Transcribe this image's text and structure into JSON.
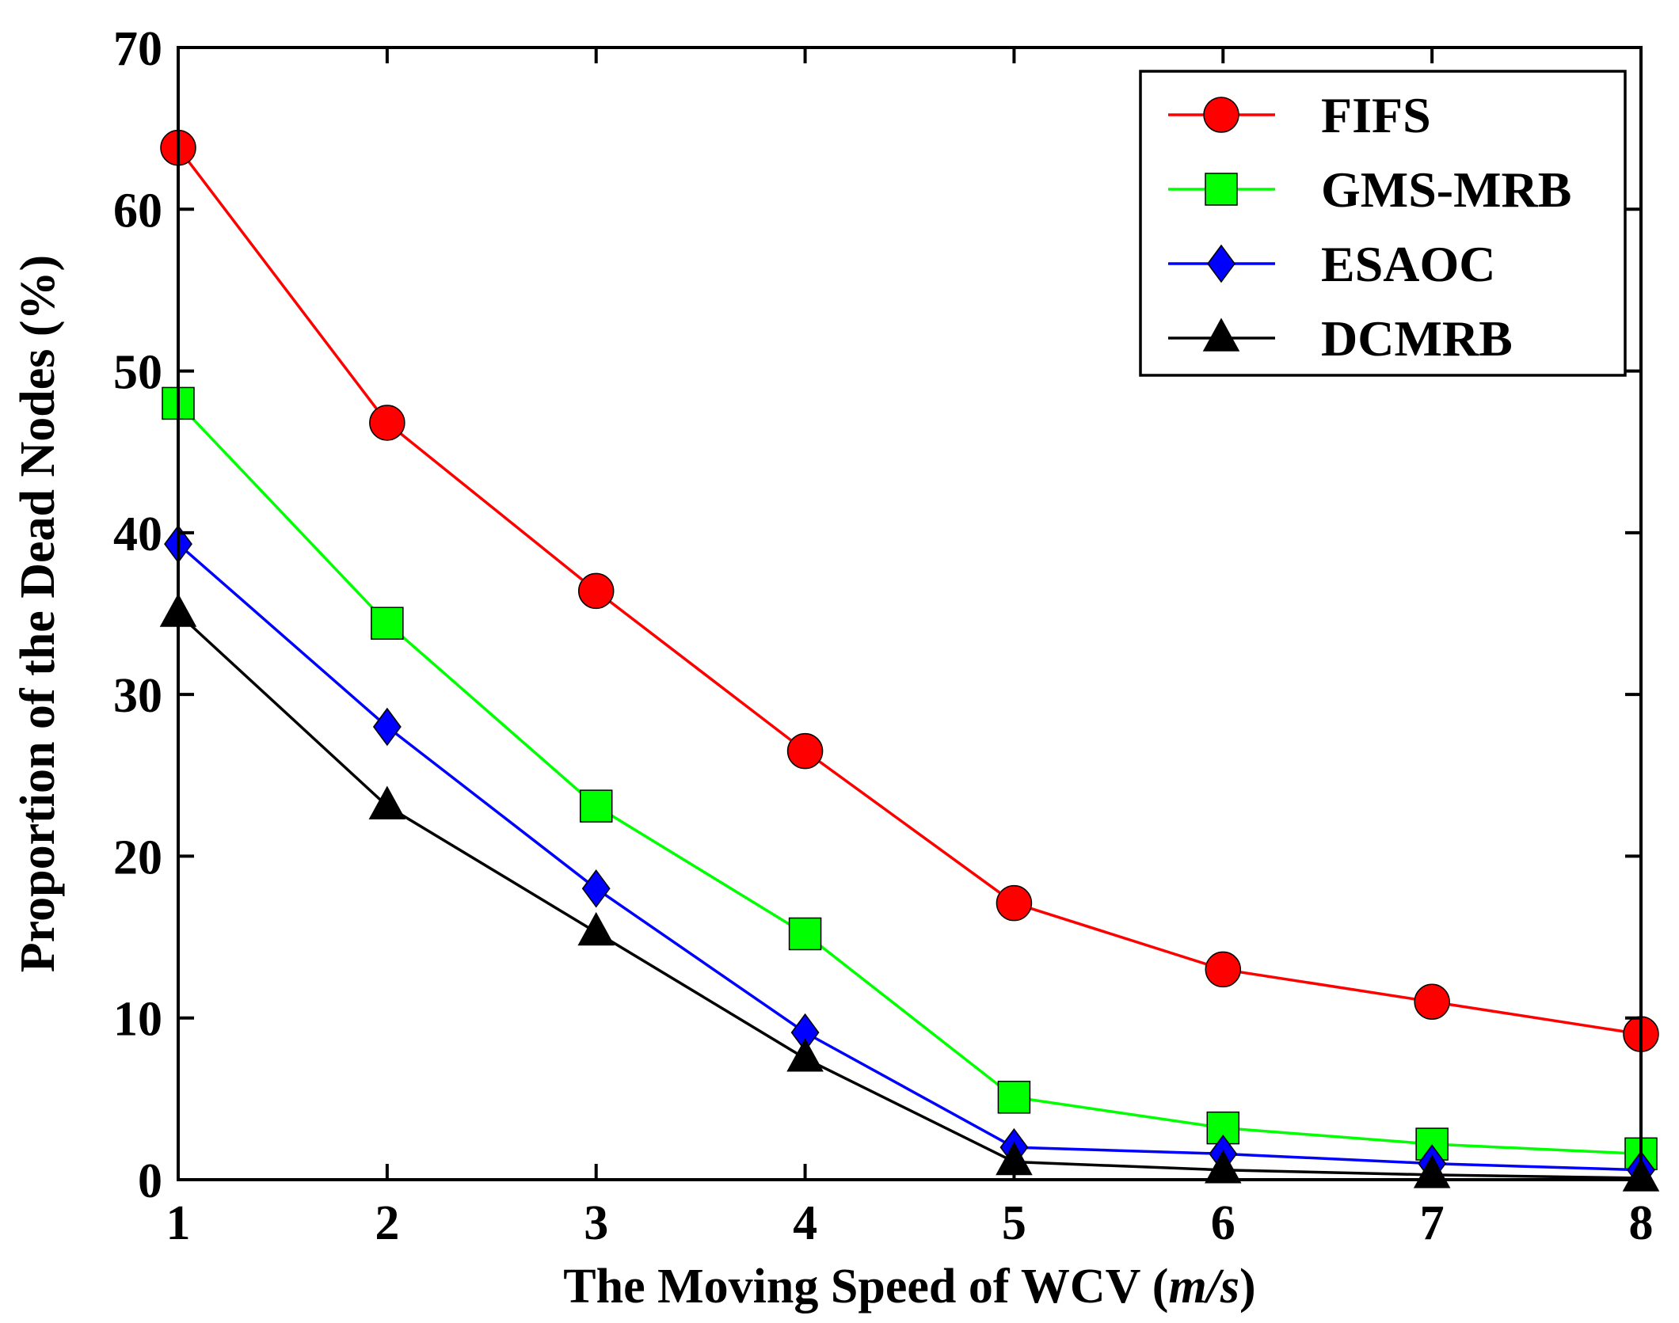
{
  "chart_data": {
    "type": "line",
    "title": "",
    "xlabel_main": "The Moving Speed of WCV (",
    "xlabel_unit": "m/s",
    "xlabel_close": ")",
    "ylabel": "Proportion of the Dead Nodes (%)",
    "x": [
      1,
      2,
      3,
      4,
      5,
      6,
      7,
      8
    ],
    "xlim": [
      1,
      8
    ],
    "ylim": [
      0,
      70
    ],
    "xticks": [
      "1",
      "2",
      "3",
      "4",
      "5",
      "6",
      "7",
      "8"
    ],
    "yticks": [
      "0",
      "10",
      "20",
      "30",
      "40",
      "50",
      "60",
      "70"
    ],
    "grid": false,
    "legend_position": "top-right",
    "series": [
      {
        "name": "FIFS",
        "color": "#ff0000",
        "marker": "circle",
        "values": [
          63.8,
          46.8,
          36.4,
          26.5,
          17.1,
          13.0,
          11.0,
          9.0
        ]
      },
      {
        "name": "GMS-MRB",
        "color": "#00ff00",
        "marker": "square",
        "values": [
          48.0,
          34.4,
          23.1,
          15.2,
          5.1,
          3.2,
          2.2,
          1.6
        ]
      },
      {
        "name": "ESAOC",
        "color": "#0000ff",
        "marker": "diamond",
        "values": [
          39.3,
          28.0,
          18.0,
          9.1,
          2.0,
          1.6,
          1.0,
          0.6
        ]
      },
      {
        "name": "DCMRB",
        "color": "#000000",
        "marker": "triangle",
        "values": [
          35.0,
          23.1,
          15.3,
          7.5,
          1.1,
          0.6,
          0.3,
          0.1
        ]
      }
    ]
  }
}
